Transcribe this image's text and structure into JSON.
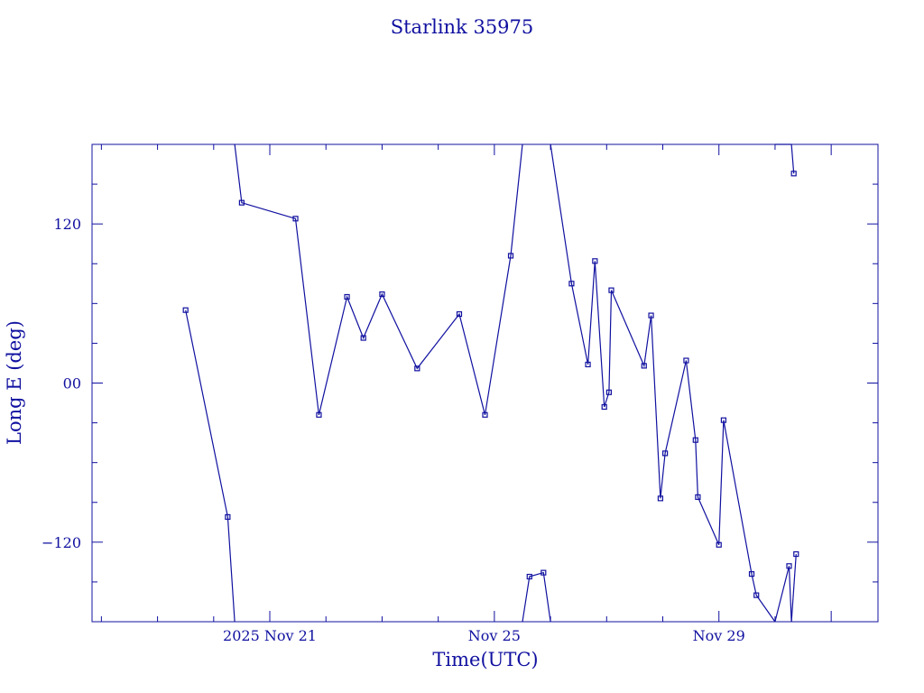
{
  "colors": {
    "ink": "#1010a0",
    "background": "#ffffff"
  },
  "chart_data": {
    "type": "line",
    "title": "Starlink 35975",
    "xlabel": "Time(UTC)",
    "ylabel": "Long E (deg)",
    "ylim": [
      -180,
      180
    ],
    "xlim": [
      "2025-11-17T20:00",
      "2025-12-01T20:00"
    ],
    "x_tick_labels": [
      {
        "x": "2025-11-21T00:00",
        "label": "2025 Nov 21"
      },
      {
        "x": "2025-11-25T00:00",
        "label": "Nov 25"
      },
      {
        "x": "2025-11-29T00:00",
        "label": "Nov 29"
      }
    ],
    "y_tick_labels": [
      {
        "y": 120,
        "label": "120"
      },
      {
        "y": 0,
        "label": "00"
      },
      {
        "y": -120,
        "label": "−120"
      }
    ],
    "grid": false,
    "legend": "none",
    "series": [
      {
        "points": [
          [
            "2025-11-19T12:00",
            55
          ],
          [
            "2025-11-20T06:00",
            -101
          ],
          [
            "2025-11-20T09:00",
            -180
          ]
        ]
      },
      {
        "points": [
          [
            "2025-11-20T09:00",
            180
          ],
          [
            "2025-11-20T12:00",
            136
          ],
          [
            "2025-11-21T11:00",
            124
          ],
          [
            "2025-11-21T21:00",
            -24
          ],
          [
            "2025-11-22T09:00",
            65
          ],
          [
            "2025-11-22T16:00",
            34
          ],
          [
            "2025-11-23T00:00",
            67
          ],
          [
            "2025-11-23T15:00",
            11
          ],
          [
            "2025-11-24T09:00",
            52
          ],
          [
            "2025-11-24T20:00",
            -24
          ],
          [
            "2025-11-25T07:00",
            96
          ],
          [
            "2025-11-25T12:00",
            180
          ]
        ]
      },
      {
        "points": [
          [
            "2025-11-25T12:00",
            -180
          ],
          [
            "2025-11-25T15:00",
            -146
          ],
          [
            "2025-11-25T21:00",
            -143
          ],
          [
            "2025-11-26T00:00",
            -180
          ]
        ]
      },
      {
        "points": [
          [
            "2025-11-26T00:00",
            180
          ],
          [
            "2025-11-26T09:00",
            75
          ],
          [
            "2025-11-26T16:00",
            14
          ],
          [
            "2025-11-26T19:00",
            92
          ],
          [
            "2025-11-26T23:00",
            -18
          ],
          [
            "2025-11-27T01:00",
            -7
          ],
          [
            "2025-11-27T02:00",
            70
          ],
          [
            "2025-11-27T16:00",
            13
          ],
          [
            "2025-11-27T19:00",
            51
          ],
          [
            "2025-11-27T23:00",
            -87
          ],
          [
            "2025-11-28T01:00",
            -53
          ],
          [
            "2025-11-28T10:00",
            17
          ],
          [
            "2025-11-28T14:00",
            -43
          ],
          [
            "2025-11-28T15:00",
            -86
          ],
          [
            "2025-11-29T00:00",
            -122
          ],
          [
            "2025-11-29T02:00",
            -28
          ],
          [
            "2025-11-29T14:00",
            -144
          ],
          [
            "2025-11-29T16:00",
            -160
          ],
          [
            "2025-11-30T00:00",
            -180
          ]
        ]
      },
      {
        "points": [
          [
            "2025-11-30T00:00",
            180
          ],
          [
            "2025-11-30T07:00",
            180
          ]
        ]
      },
      {
        "points": [
          [
            "2025-11-30T00:00",
            -180
          ],
          [
            "2025-11-30T06:00",
            -138
          ],
          [
            "2025-11-30T07:00",
            -180
          ]
        ]
      },
      {
        "points": [
          [
            "2025-11-30T07:00",
            180
          ],
          [
            "2025-11-30T08:00",
            158
          ]
        ]
      },
      {
        "points": [
          [
            "2025-11-30T07:00",
            -180
          ],
          [
            "2025-11-30T09:00",
            -129
          ]
        ]
      }
    ]
  }
}
